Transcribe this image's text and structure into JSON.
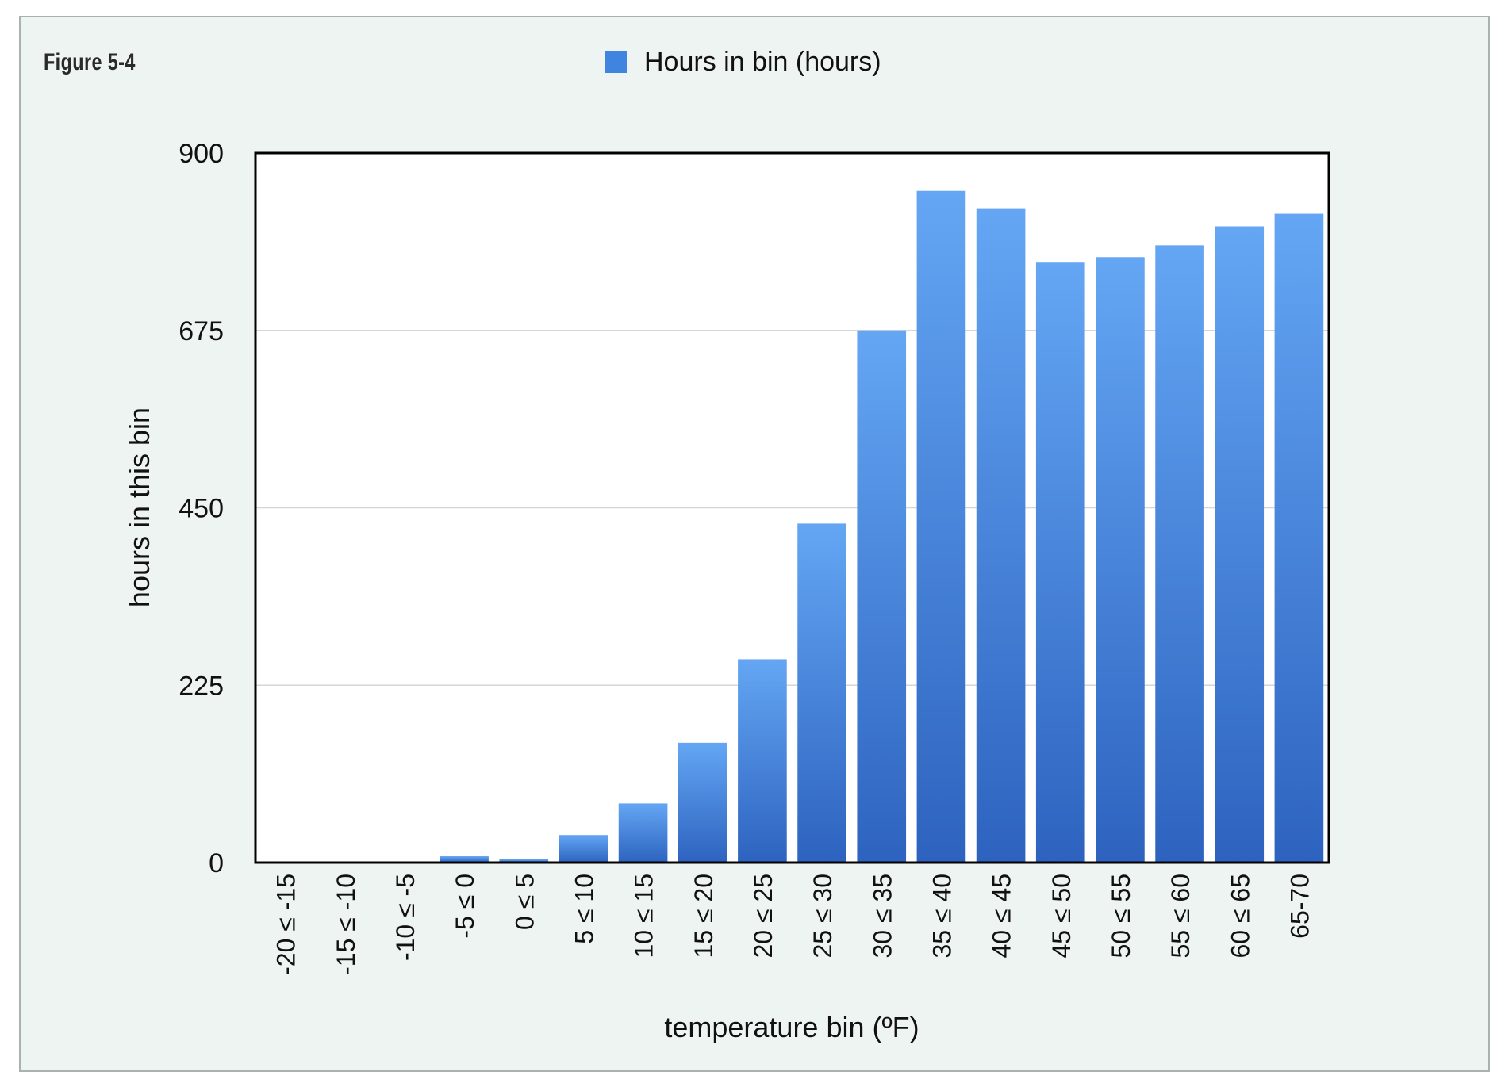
{
  "figure_label": "Figure 5-4",
  "colors": {
    "bar_top": "#64a6f4",
    "bar_bottom": "#2d63bf",
    "legend_swatch": "#3f84df",
    "grid": "#d6d6d6",
    "axis": "#000000"
  },
  "chart_data": {
    "type": "bar",
    "title": "",
    "xlabel": "temperature bin (ºF)",
    "ylabel": "hours in this bin",
    "ylim": [
      0,
      900
    ],
    "yticks": [
      0,
      225,
      450,
      675,
      900
    ],
    "grid": true,
    "legend_position": "top-center",
    "categories": [
      "-20 ≤ -15",
      "-15 ≤ -10",
      "-10 ≤ -5",
      "-5 ≤ 0",
      "0 ≤ 5",
      "5 ≤ 10",
      "10 ≤ 15",
      "15 ≤ 20",
      "20 ≤ 25",
      "25 ≤ 30",
      "30 ≤ 35",
      "35 ≤ 40",
      "40 ≤ 45",
      "45 ≤ 50",
      "50 ≤ 55",
      "55 ≤ 60",
      "60 ≤ 65",
      "65-70"
    ],
    "series": [
      {
        "name": "Hours in bin (hours)",
        "values": [
          0,
          0,
          0,
          8,
          4,
          35,
          75,
          152,
          258,
          430,
          675,
          852,
          830,
          761,
          768,
          783,
          807,
          823
        ]
      }
    ]
  }
}
